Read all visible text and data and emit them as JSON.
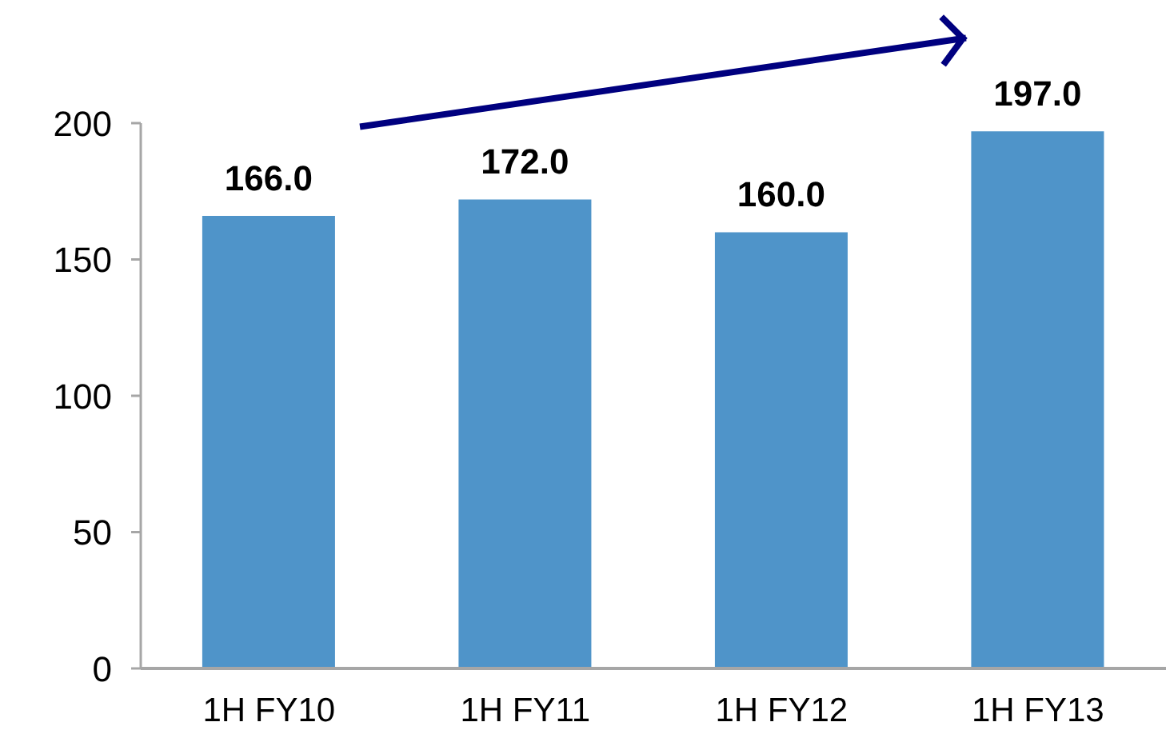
{
  "chart_data": {
    "type": "bar",
    "categories": [
      "1H FY10",
      "1H FY11",
      "1H FY12",
      "1H FY13"
    ],
    "values": [
      166.0,
      172.0,
      160.0,
      197.0
    ],
    "value_labels": [
      "166.0",
      "172.0",
      "160.0",
      "197.0"
    ],
    "color": "#4f94c9",
    "ylim": [
      0,
      200
    ],
    "yticks": [
      0,
      50,
      100,
      150,
      200
    ],
    "grid": false,
    "legend": false
  }
}
